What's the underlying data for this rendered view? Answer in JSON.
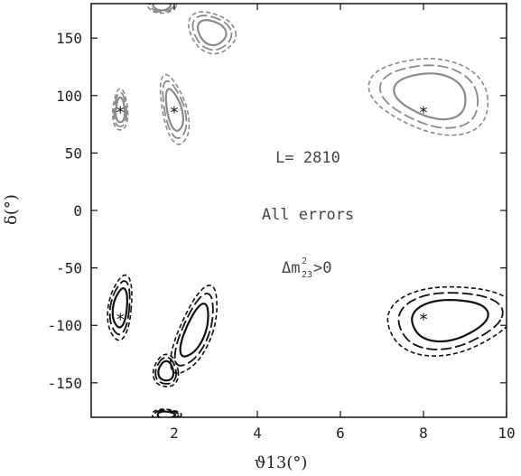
{
  "chart_data": {
    "type": "contour",
    "xlabel": "ϑ13(°)",
    "ylabel": "δ(°)",
    "xlim": [
      0,
      10
    ],
    "ylim": [
      -180,
      180
    ],
    "xticks": [
      {
        "value": 2,
        "label": "2"
      },
      {
        "value": 4,
        "label": "4"
      },
      {
        "value": 6,
        "label": "6"
      },
      {
        "value": 8,
        "label": "8"
      },
      {
        "value": 10,
        "label": "10"
      }
    ],
    "yticks": [
      {
        "value": 150,
        "label": "150"
      },
      {
        "value": 100,
        "label": "100"
      },
      {
        "value": 50,
        "label": "50"
      },
      {
        "value": 0,
        "label": "0"
      },
      {
        "value": -50,
        "label": "-50"
      },
      {
        "value": -100,
        "label": "-100"
      },
      {
        "value": -150,
        "label": "-150"
      }
    ],
    "annotations": [
      {
        "text": "L= 2810",
        "x": 5.55,
        "y": 32
      },
      {
        "text": "All errors",
        "x": 5.55,
        "y": -3
      },
      {
        "text": "Δm",
        "sup": "2",
        "sub": "23",
        "tail": ">0",
        "x": 5.55,
        "y": -50
      }
    ],
    "true_points": [
      {
        "x": 0.7,
        "y": 87
      },
      {
        "x": 2.0,
        "y": 87
      },
      {
        "x": 8.0,
        "y": 87
      },
      {
        "x": 8.0,
        "y": -93
      },
      {
        "x": 0.7,
        "y": -93
      }
    ],
    "contour_regions": [
      {
        "group": "gray",
        "cx": 0.7,
        "cy": 87,
        "rx": 0.18,
        "ry": 18,
        "tilt": 0
      },
      {
        "group": "gray",
        "cx": 2.0,
        "cy": 87,
        "rx": 0.3,
        "ry": 30,
        "tilt": 0.2
      },
      {
        "group": "gray",
        "cx": 2.9,
        "cy": 155,
        "rx": 0.55,
        "ry": 18,
        "tilt": 0.25
      },
      {
        "group": "gray",
        "cx": 1.7,
        "cy": 178,
        "rx": 0.35,
        "ry": 6,
        "tilt": 0
      },
      {
        "group": "gray",
        "cx": 8.2,
        "cy": 100,
        "rx": 1.4,
        "ry": 33,
        "tilt": 0.35
      },
      {
        "group": "black",
        "cx": 0.7,
        "cy": -85,
        "rx": 0.28,
        "ry": 28,
        "tilt": -0.1
      },
      {
        "group": "black",
        "cx": 1.8,
        "cy": -140,
        "rx": 0.3,
        "ry": 14,
        "tilt": 0
      },
      {
        "group": "black",
        "cx": 2.5,
        "cy": -105,
        "rx": 0.42,
        "ry": 38,
        "tilt": -0.35
      },
      {
        "group": "black",
        "cx": 1.8,
        "cy": -178,
        "rx": 0.35,
        "ry": 5,
        "tilt": 0
      },
      {
        "group": "black",
        "cx": 8.6,
        "cy": -95,
        "rx": 1.5,
        "ry": 30,
        "tilt": -0.3
      }
    ],
    "colors": {
      "gray": "#8a8a8a",
      "black": "#111111"
    },
    "grid": false
  }
}
